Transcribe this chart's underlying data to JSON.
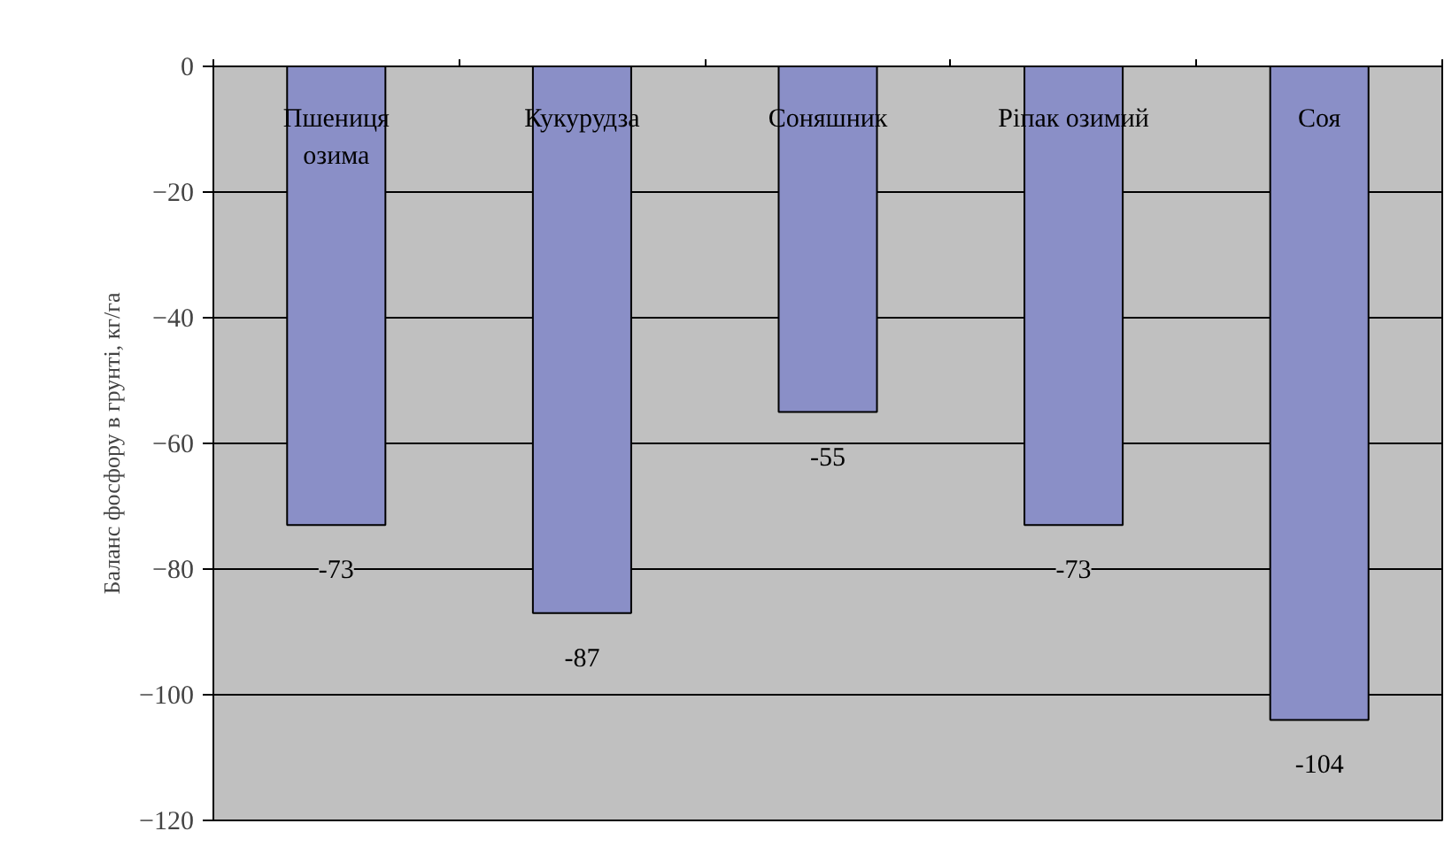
{
  "chart_data": {
    "type": "bar",
    "ylabel": "Баланс фосфору в грунті, кг/га",
    "categories": [
      "Пшениця озима",
      "Кукурудза",
      "Соняшник",
      "Ріпак озимий",
      "Соя"
    ],
    "values": [
      -73,
      -87,
      -55,
      -73,
      -104
    ],
    "color": "#8a8fc7",
    "ylim": [
      -120,
      0
    ],
    "yticks": [
      0,
      -20,
      -40,
      -60,
      -80,
      -100,
      -120
    ],
    "grid": "y",
    "data_labels": true
  }
}
